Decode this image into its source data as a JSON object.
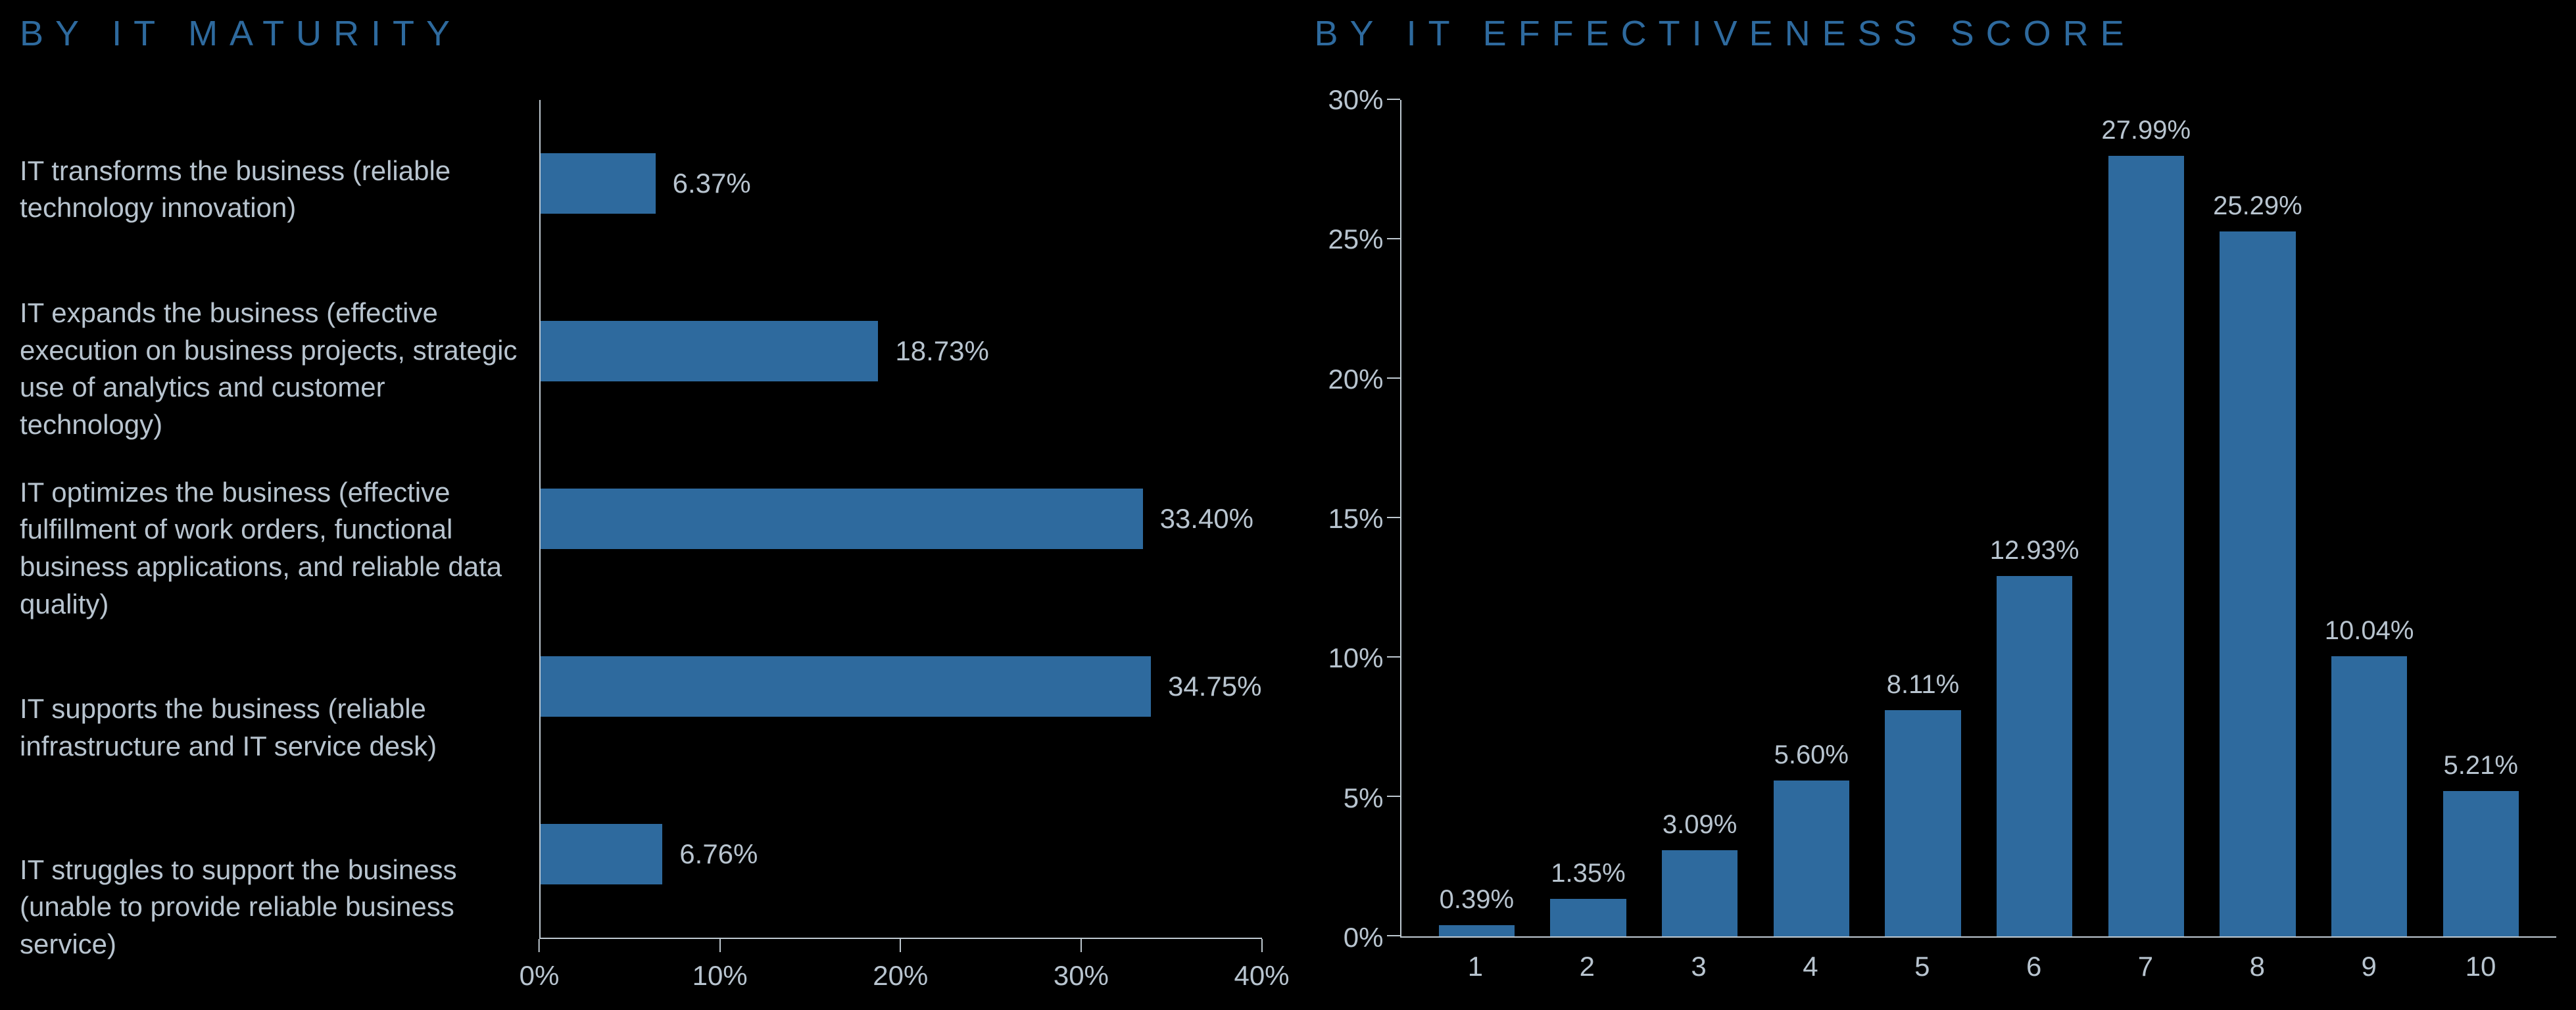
{
  "background_color": "#000000",
  "text_color": "#b8c4cf",
  "axis_color": "#bfc9d1",
  "bar_color": "#2e6a9e",
  "title_color": "#2e6a9e",
  "title_fontsize": 54,
  "label_fontsize": 42,
  "value_fontsize": 42,
  "maturity_chart": {
    "title": "BY IT MATURITY",
    "type": "bar-horizontal",
    "xmax": 40,
    "xtick_step": 10,
    "xticks": [
      "0%",
      "10%",
      "20%",
      "30%",
      "40%"
    ],
    "bars": [
      {
        "label": "IT transforms the business (reliable technology innovation)",
        "value": 6.37,
        "value_label": "6.37%"
      },
      {
        "label": "IT expands the business (effective execution on business projects, strategic use of analytics and customer technology)",
        "value": 18.73,
        "value_label": "18.73%"
      },
      {
        "label": "IT optimizes the business (effective fulfillment of work orders, functional business applications, and reliable data quality)",
        "value": 33.4,
        "value_label": "33.40%"
      },
      {
        "label": "IT supports the business (reliable infrastructure and IT service desk)",
        "value": 34.75,
        "value_label": "34.75%"
      },
      {
        "label": "IT struggles to support the business (unable to provide reliable business service)",
        "value": 6.76,
        "value_label": "6.76%"
      }
    ]
  },
  "effectiveness_chart": {
    "title": "BY IT EFFECTIVENESS SCORE",
    "type": "bar-vertical",
    "ymax": 30,
    "ytick_step": 5,
    "yticks": [
      "0%",
      "5%",
      "10%",
      "15%",
      "20%",
      "25%",
      "30%"
    ],
    "categories": [
      "1",
      "2",
      "3",
      "4",
      "5",
      "6",
      "7",
      "8",
      "9",
      "10"
    ],
    "bars": [
      {
        "category": "1",
        "value": 0.39,
        "value_label": "0.39%"
      },
      {
        "category": "2",
        "value": 1.35,
        "value_label": "1.35%"
      },
      {
        "category": "3",
        "value": 3.09,
        "value_label": "3.09%"
      },
      {
        "category": "4",
        "value": 5.6,
        "value_label": "5.60%"
      },
      {
        "category": "5",
        "value": 8.11,
        "value_label": "8.11%"
      },
      {
        "category": "6",
        "value": 12.93,
        "value_label": "12.93%"
      },
      {
        "category": "7",
        "value": 27.99,
        "value_label": "27.99%"
      },
      {
        "category": "8",
        "value": 25.29,
        "value_label": "25.29%"
      },
      {
        "category": "9",
        "value": 10.04,
        "value_label": "10.04%"
      },
      {
        "category": "10",
        "value": 5.21,
        "value_label": "5.21%"
      }
    ]
  }
}
